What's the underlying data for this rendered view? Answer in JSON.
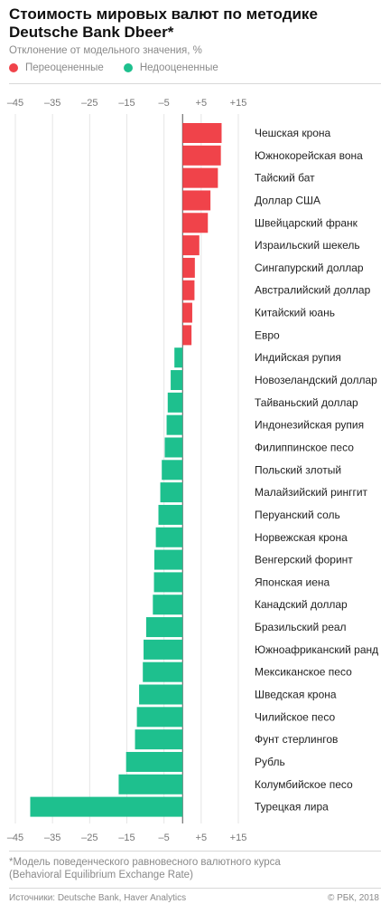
{
  "header": {
    "title_line1": "Стоимость мировых валют по методике",
    "title_line2": "Deutsche Bank Dbeer*",
    "subtitle": "Отклонение от модельного значения, %"
  },
  "legend": {
    "over_label": "Переоцененные",
    "under_label": "Недооцененные"
  },
  "colors": {
    "over": "#f0434a",
    "under": "#1ec08e"
  },
  "footer": {
    "note_line1": "*Модель поведенческого равновесного валютного курса",
    "note_line2": "(Behavioral Equilibrium Exchange Rate)",
    "source": "Источники: Deutsche Bank, Haver Analytics",
    "credit": "© РБК, 2018"
  },
  "chart_data": {
    "type": "bar",
    "orientation": "horizontal",
    "xlim": [
      -45,
      15
    ],
    "xticks": [
      -45,
      -35,
      -25,
      -15,
      -5,
      5,
      15
    ],
    "xtick_labels": [
      "–45",
      "–35",
      "–25",
      "–15",
      "–5",
      "+5",
      "+15"
    ],
    "categories": [
      "Чешская крона",
      "Южнокорейская вона",
      "Тайский бат",
      "Доллар США",
      "Швейцарский франк",
      "Израильский шекель",
      "Сингапурский доллар",
      "Австралийский доллар",
      "Китайский юань",
      "Евро",
      "Индийская рупия",
      "Новозеландский доллар",
      "Тайваньский доллар",
      "Индонезийская рупия",
      "Филиппинское песо",
      "Польский злотый",
      "Малайзийский ринггит",
      "Перуанский соль",
      "Норвежская крона",
      "Венгерский форинт",
      "Японская иена",
      "Канадский доллар",
      "Бразильский реал",
      "Южноафриканский ранд",
      "Мексиканское песо",
      "Шведская крона",
      "Чилийское песо",
      "Фунт стерлингов",
      "Рубль",
      "Колумбийское песо",
      "Турецкая лира"
    ],
    "values": [
      10.5,
      10.3,
      9.5,
      7.5,
      6.8,
      4.5,
      3.3,
      3.2,
      2.6,
      2.4,
      -2.2,
      -3.2,
      -4.0,
      -4.3,
      -4.8,
      -5.6,
      -6.0,
      -6.5,
      -7.2,
      -7.6,
      -7.7,
      -8.0,
      -9.8,
      -10.5,
      -10.7,
      -11.7,
      -12.3,
      -12.8,
      -15.2,
      -17.2,
      -41.0
    ],
    "grid": true
  }
}
